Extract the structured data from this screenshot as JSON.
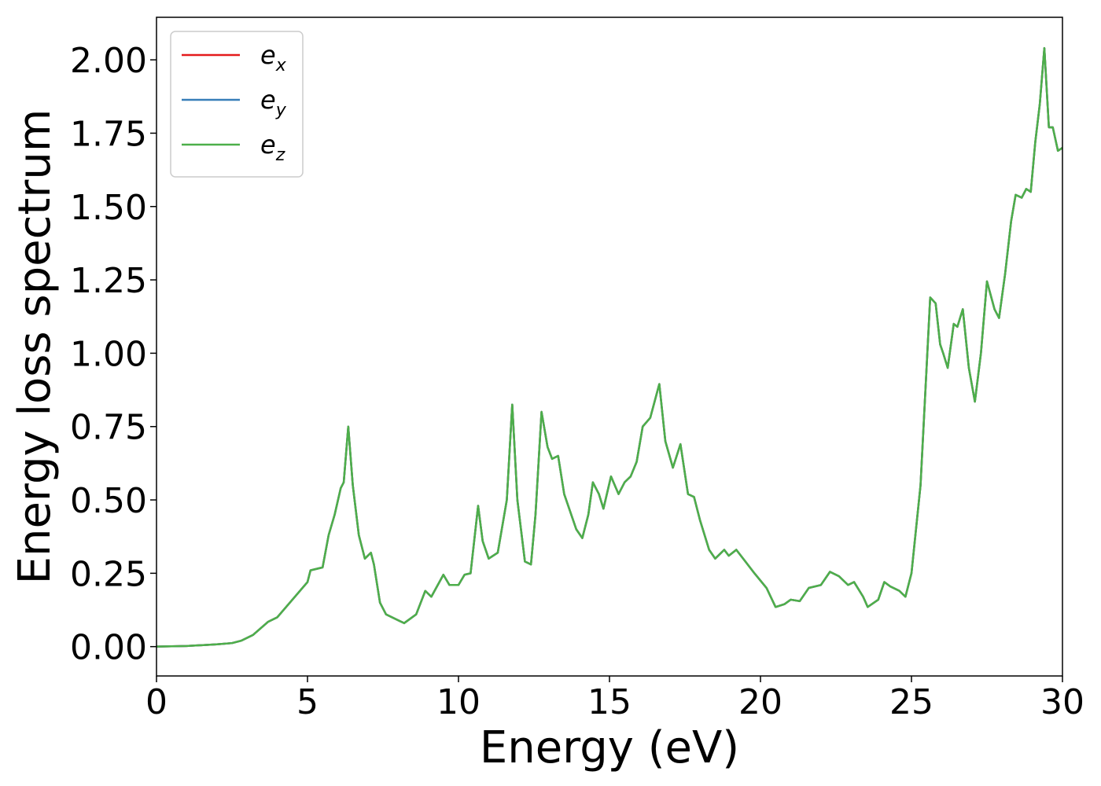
{
  "chart_data": {
    "type": "line",
    "x_label": "Energy (eV)",
    "y_label": "Energy loss spectrum",
    "x": [
      0,
      1,
      2,
      2.5,
      2.8,
      3.2,
      3.7,
      4.0,
      4.5,
      5.0,
      5.1,
      5.5,
      5.7,
      5.9,
      6.1,
      6.2,
      6.35,
      6.5,
      6.7,
      6.9,
      7.1,
      7.2,
      7.4,
      7.6,
      8.0,
      8.2,
      8.6,
      8.9,
      9.1,
      9.5,
      9.7,
      10.0,
      10.2,
      10.4,
      10.65,
      10.8,
      11.0,
      11.3,
      11.6,
      11.78,
      11.95,
      12.2,
      12.4,
      12.55,
      12.75,
      12.95,
      13.1,
      13.3,
      13.5,
      13.9,
      14.1,
      14.3,
      14.45,
      14.65,
      14.8,
      15.05,
      15.3,
      15.5,
      15.7,
      15.9,
      16.1,
      16.35,
      16.65,
      16.85,
      17.1,
      17.35,
      17.6,
      17.8,
      18.0,
      18.3,
      18.5,
      18.8,
      18.95,
      19.2,
      19.5,
      19.8,
      20.2,
      20.5,
      20.8,
      21.0,
      21.3,
      21.6,
      22.0,
      22.3,
      22.6,
      22.9,
      23.1,
      23.4,
      23.55,
      23.9,
      24.1,
      24.3,
      24.6,
      24.8,
      25.0,
      25.3,
      25.5,
      25.62,
      25.8,
      25.95,
      26.05,
      26.2,
      26.4,
      26.52,
      26.7,
      26.9,
      27.1,
      27.3,
      27.5,
      27.75,
      27.9,
      28.1,
      28.3,
      28.45,
      28.65,
      28.8,
      28.95,
      29.1,
      29.25,
      29.4,
      29.55,
      29.68,
      29.85,
      30
    ],
    "series": [
      {
        "name": "ex",
        "color": "#e41a1c",
        "values": [
          0,
          0.002,
          0.008,
          0.012,
          0.02,
          0.04,
          0.085,
          0.1,
          0.16,
          0.22,
          0.26,
          0.27,
          0.38,
          0.45,
          0.54,
          0.56,
          0.75,
          0.55,
          0.38,
          0.3,
          0.32,
          0.28,
          0.15,
          0.11,
          0.09,
          0.08,
          0.11,
          0.19,
          0.17,
          0.245,
          0.21,
          0.21,
          0.245,
          0.25,
          0.48,
          0.36,
          0.3,
          0.32,
          0.5,
          0.825,
          0.5,
          0.29,
          0.28,
          0.45,
          0.8,
          0.68,
          0.64,
          0.65,
          0.52,
          0.4,
          0.37,
          0.45,
          0.56,
          0.52,
          0.47,
          0.58,
          0.52,
          0.56,
          0.58,
          0.63,
          0.75,
          0.78,
          0.895,
          0.7,
          0.61,
          0.69,
          0.52,
          0.51,
          0.43,
          0.33,
          0.3,
          0.33,
          0.31,
          0.33,
          0.29,
          0.25,
          0.2,
          0.135,
          0.145,
          0.16,
          0.155,
          0.2,
          0.21,
          0.255,
          0.24,
          0.21,
          0.22,
          0.17,
          0.135,
          0.16,
          0.22,
          0.205,
          0.19,
          0.17,
          0.25,
          0.55,
          0.95,
          1.19,
          1.17,
          1.03,
          1.0,
          0.95,
          1.1,
          1.09,
          1.15,
          0.95,
          0.835,
          1.0,
          1.245,
          1.15,
          1.12,
          1.27,
          1.45,
          1.54,
          1.53,
          1.56,
          1.55,
          1.72,
          1.85,
          2.04,
          1.77,
          1.77,
          1.69,
          1.7
        ]
      },
      {
        "name": "ey",
        "color": "#377eb8",
        "values": [
          0,
          0.002,
          0.008,
          0.012,
          0.02,
          0.04,
          0.085,
          0.1,
          0.16,
          0.22,
          0.26,
          0.27,
          0.38,
          0.45,
          0.54,
          0.56,
          0.75,
          0.55,
          0.38,
          0.3,
          0.32,
          0.28,
          0.15,
          0.11,
          0.09,
          0.08,
          0.11,
          0.19,
          0.17,
          0.245,
          0.21,
          0.21,
          0.245,
          0.25,
          0.48,
          0.36,
          0.3,
          0.32,
          0.5,
          0.825,
          0.5,
          0.29,
          0.28,
          0.45,
          0.8,
          0.68,
          0.64,
          0.65,
          0.52,
          0.4,
          0.37,
          0.45,
          0.56,
          0.52,
          0.47,
          0.58,
          0.52,
          0.56,
          0.58,
          0.63,
          0.75,
          0.78,
          0.895,
          0.7,
          0.61,
          0.69,
          0.52,
          0.51,
          0.43,
          0.33,
          0.3,
          0.33,
          0.31,
          0.33,
          0.29,
          0.25,
          0.2,
          0.135,
          0.145,
          0.16,
          0.155,
          0.2,
          0.21,
          0.255,
          0.24,
          0.21,
          0.22,
          0.17,
          0.135,
          0.16,
          0.22,
          0.205,
          0.19,
          0.17,
          0.25,
          0.55,
          0.95,
          1.19,
          1.17,
          1.03,
          1.0,
          0.95,
          1.1,
          1.09,
          1.15,
          0.95,
          0.835,
          1.0,
          1.245,
          1.15,
          1.12,
          1.27,
          1.45,
          1.54,
          1.53,
          1.56,
          1.55,
          1.72,
          1.85,
          2.04,
          1.77,
          1.77,
          1.69,
          1.7
        ]
      },
      {
        "name": "ez",
        "color": "#4daf4a",
        "values": [
          0,
          0.002,
          0.008,
          0.012,
          0.02,
          0.04,
          0.085,
          0.1,
          0.16,
          0.22,
          0.26,
          0.27,
          0.38,
          0.45,
          0.54,
          0.56,
          0.75,
          0.55,
          0.38,
          0.3,
          0.32,
          0.28,
          0.15,
          0.11,
          0.09,
          0.08,
          0.11,
          0.19,
          0.17,
          0.245,
          0.21,
          0.21,
          0.245,
          0.25,
          0.48,
          0.36,
          0.3,
          0.32,
          0.5,
          0.825,
          0.5,
          0.29,
          0.28,
          0.45,
          0.8,
          0.68,
          0.64,
          0.65,
          0.52,
          0.4,
          0.37,
          0.45,
          0.56,
          0.52,
          0.47,
          0.58,
          0.52,
          0.56,
          0.58,
          0.63,
          0.75,
          0.78,
          0.895,
          0.7,
          0.61,
          0.69,
          0.52,
          0.51,
          0.43,
          0.33,
          0.3,
          0.33,
          0.31,
          0.33,
          0.29,
          0.25,
          0.2,
          0.135,
          0.145,
          0.16,
          0.155,
          0.2,
          0.21,
          0.255,
          0.24,
          0.21,
          0.22,
          0.17,
          0.135,
          0.16,
          0.22,
          0.205,
          0.19,
          0.17,
          0.25,
          0.55,
          0.95,
          1.19,
          1.17,
          1.03,
          1.0,
          0.95,
          1.1,
          1.09,
          1.15,
          0.95,
          0.835,
          1.0,
          1.245,
          1.15,
          1.12,
          1.27,
          1.45,
          1.54,
          1.53,
          1.56,
          1.55,
          1.72,
          1.85,
          2.04,
          1.77,
          1.77,
          1.69,
          1.7
        ]
      }
    ],
    "xlim": [
      0,
      30
    ],
    "xticks": [
      0,
      5,
      10,
      15,
      20,
      25,
      30
    ],
    "ylim": [
      -0.1,
      2.145
    ],
    "yticks": [
      {
        "value": 0,
        "label": "0.00"
      },
      {
        "value": 0.25,
        "label": "0.25"
      },
      {
        "value": 0.5,
        "label": "0.50"
      },
      {
        "value": 0.75,
        "label": "0.75"
      },
      {
        "value": 1,
        "label": "1.00"
      },
      {
        "value": 1.25,
        "label": "1.25"
      },
      {
        "value": 1.5,
        "label": "1.50"
      },
      {
        "value": 1.75,
        "label": "1.75"
      },
      {
        "value": 2,
        "label": "2.00"
      }
    ],
    "grid": false,
    "legend": "upper left"
  }
}
